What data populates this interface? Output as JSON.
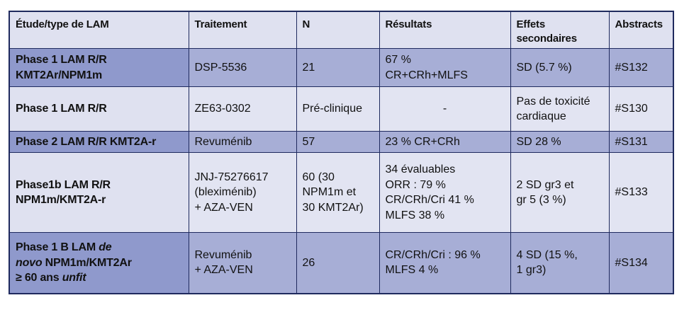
{
  "headers": [
    "Étude/type de LAM",
    "Traitement",
    "N",
    "Résultats",
    "Effets secondaires",
    "Abstracts"
  ],
  "rows": [
    {
      "study_lines": [
        "Phase 1 LAM R/R",
        "KMT2Ar/NPM1m"
      ],
      "treatment_lines": [
        "DSP-5536"
      ],
      "n_lines": [
        "21"
      ],
      "results_lines": [
        "67 %",
        "CR+CRh+MLFS"
      ],
      "side_effects_lines": [
        "SD (5.7 %)"
      ],
      "abstract": "#S132"
    },
    {
      "study_lines": [
        "Phase 1 LAM R/R"
      ],
      "treatment_lines": [
        "ZE63-0302"
      ],
      "n_lines": [
        "Pré-clinique"
      ],
      "results_lines": [
        "-"
      ],
      "side_effects_lines": [
        "Pas de toxicité",
        "cardiaque"
      ],
      "abstract": "#S130"
    },
    {
      "study_lines": [
        "Phase 2 LAM R/R KMT2A-r"
      ],
      "treatment_lines": [
        "Revuménib"
      ],
      "n_lines": [
        "57"
      ],
      "results_lines": [
        "23 % CR+CRh"
      ],
      "side_effects_lines": [
        "SD 28 %"
      ],
      "abstract": "#S131"
    },
    {
      "study_lines": [
        "Phase1b LAM R/R",
        "NPM1m/KMT2A-r"
      ],
      "treatment_lines": [
        "JNJ-75276617",
        "(bleximénib)",
        "+ AZA-VEN"
      ],
      "n_lines": [
        "60 (30",
        "NPM1m et",
        "30 KMT2Ar)"
      ],
      "results_lines": [
        "34 évaluables",
        "ORR : 79 %",
        "CR/CRh/Cri 41 %",
        "MLFS 38 %"
      ],
      "side_effects_lines": [
        "2 SD gr3 et",
        "gr 5 (3 %)"
      ],
      "abstract": "#S133"
    },
    {
      "study_parts": {
        "l1_a": "Phase 1 B LAM ",
        "l1_b": "de",
        "l2_a": "novo",
        "l2_b": " NPM1m/KMT2Ar",
        "l3_a": "≥ 60 ans ",
        "l3_b": "unfit"
      },
      "treatment_lines": [
        "Revuménib",
        "+ AZA-VEN"
      ],
      "n_lines": [
        "26"
      ],
      "results_lines": [
        "CR/CRh/Cri : 96 %",
        "MLFS 4 %"
      ],
      "side_effects_lines": [
        "4 SD (15 %,",
        "1 gr3)"
      ],
      "abstract": "#S134"
    }
  ]
}
